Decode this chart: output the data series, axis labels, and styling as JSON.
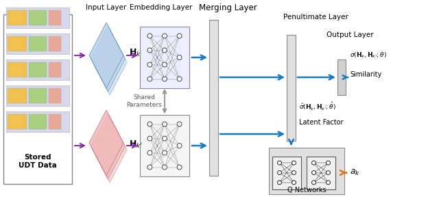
{
  "figsize": [
    6.4,
    2.91
  ],
  "dpi": 100,
  "bg_color": "#ffffff",
  "colors": {
    "blue_diamond": "#b8d0e8",
    "pink_diamond": "#f0b8b8",
    "arrow_purple": "#8030a0",
    "arrow_blue": "#1878c0",
    "arrow_orange": "#e07010",
    "arrow_gray": "#909090",
    "lavender": "#d8d8ec",
    "yellow": "#f0c050",
    "green": "#a8d080",
    "salmon": "#e8a898",
    "nn_box_top": "#eeeeff",
    "nn_box_bot": "#f5f5f5",
    "layer_bar": "#e0e0e0",
    "output_box": "#d0d0d0",
    "q_box": "#e0e0e0"
  },
  "labels": {
    "input_layer": "Input Layer",
    "embedding_layer": "Embedding Layer",
    "merging_layer": "Merging Layer",
    "penultimate_layer": "Penultimate Layer",
    "output_layer": "Output Layer",
    "shared_params": "Shared\nParameters",
    "similarity": "Similarity",
    "latent_factor": "Latent Factor",
    "q_networks": "Q Networks",
    "stored_udt": "Stored\nUDT Data"
  }
}
